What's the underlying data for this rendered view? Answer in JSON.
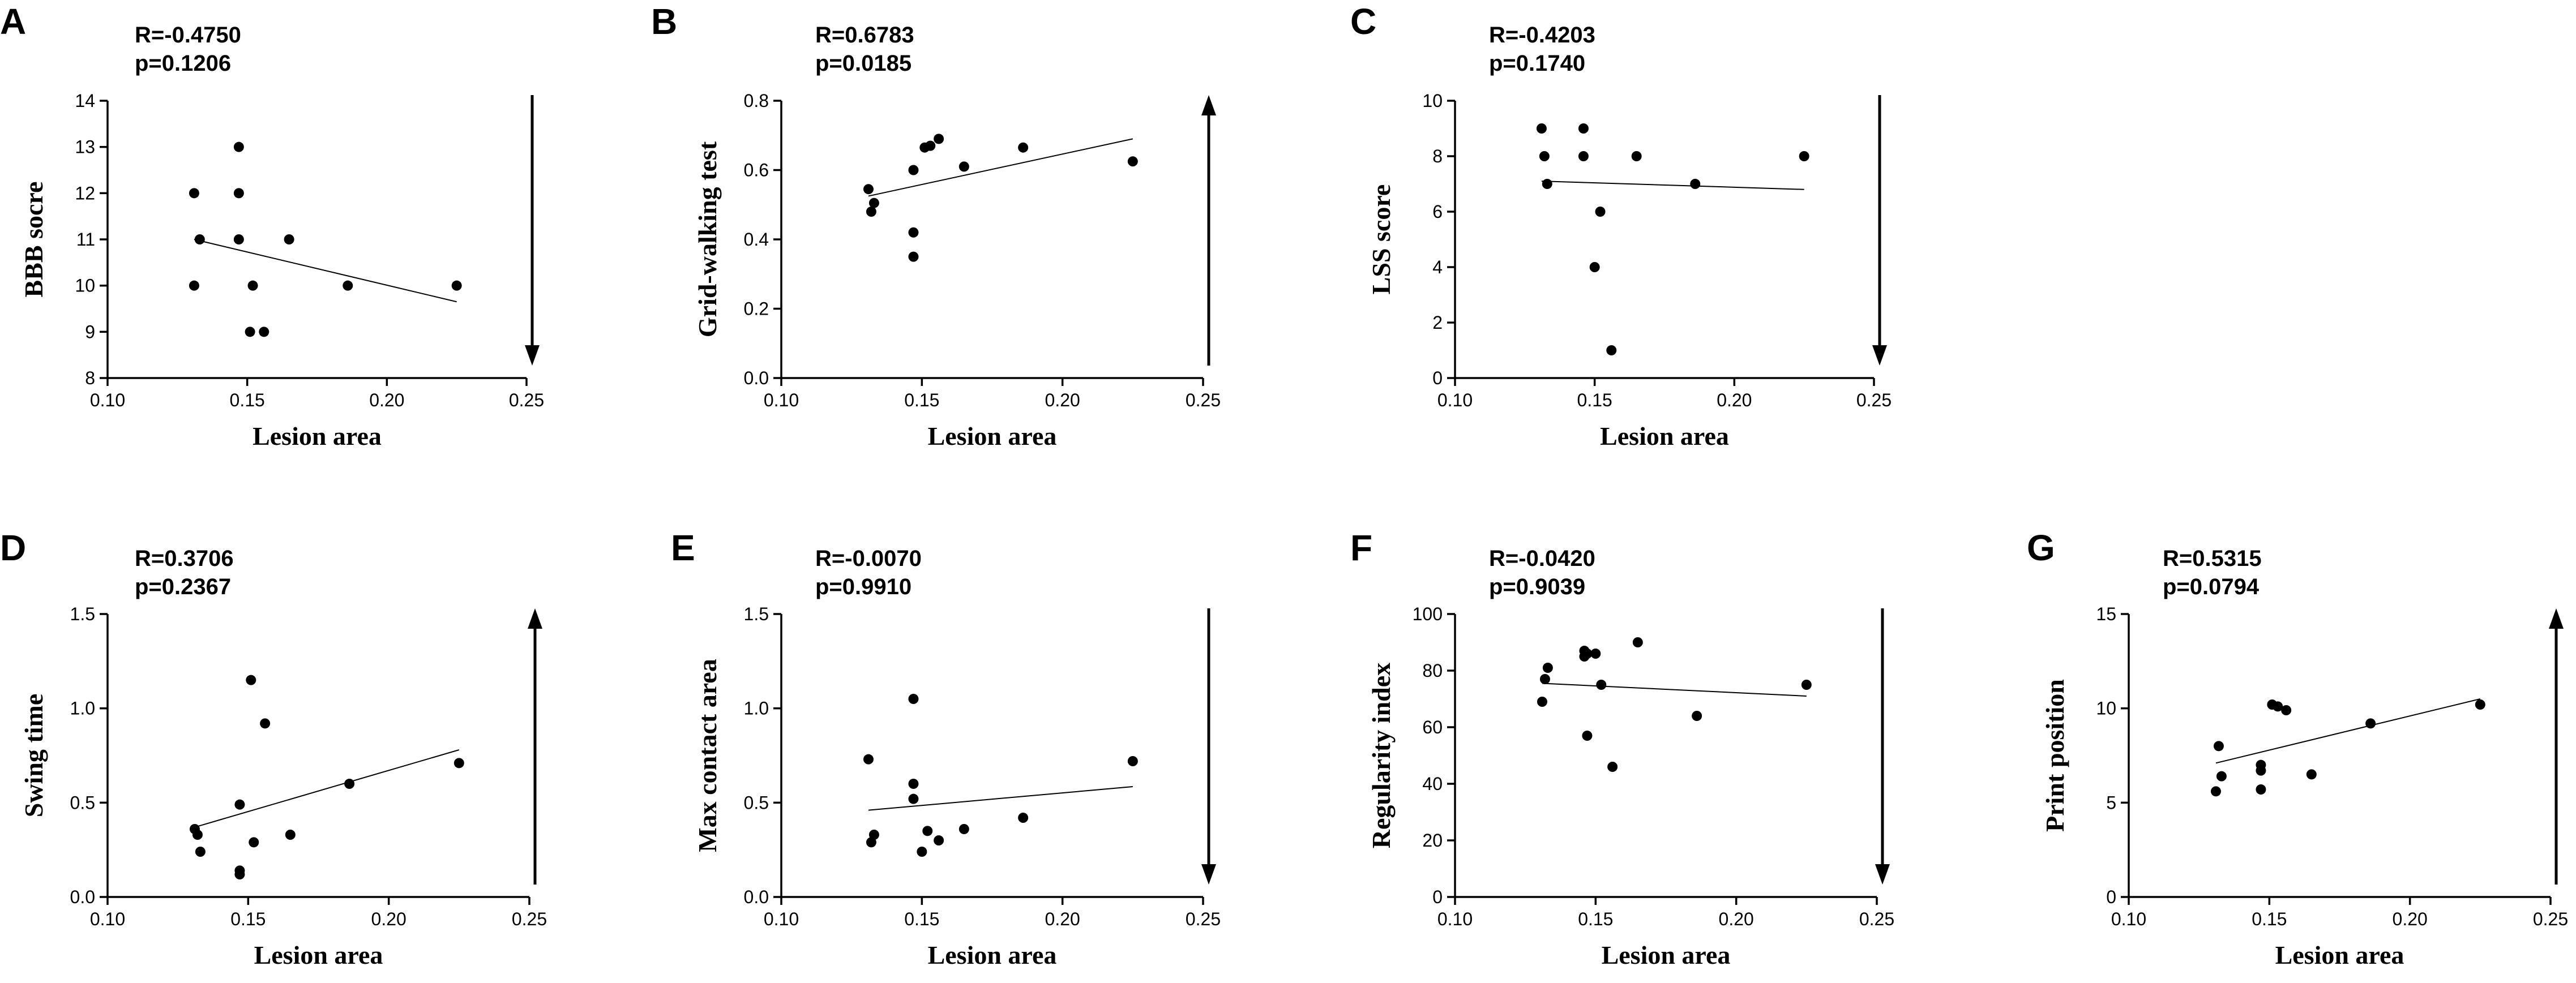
{
  "colors": {
    "ink": "#000000",
    "background": "#ffffff"
  },
  "chart_data": [
    {
      "type": "scatter",
      "panel": "A",
      "r_text": "R=-0.4750",
      "p_text": "p=0.1206",
      "xlabel": "Lesion area",
      "ylabel": "BBB socre",
      "xlim": [
        0.1,
        0.25
      ],
      "ylim": [
        8,
        14
      ],
      "xticks": [
        "0.10",
        "0.15",
        "0.20",
        "0.25"
      ],
      "yticks": [
        "8",
        "9",
        "10",
        "11",
        "12",
        "13",
        "14"
      ],
      "x": [
        0.131,
        0.131,
        0.133,
        0.147,
        0.147,
        0.147,
        0.151,
        0.152,
        0.156,
        0.165,
        0.186,
        0.225
      ],
      "y": [
        12,
        10,
        11,
        13,
        12,
        11,
        9,
        10,
        9,
        11,
        10,
        10
      ],
      "fit": {
        "x": [
          0.131,
          0.225
        ],
        "y": [
          11.0,
          9.65
        ]
      },
      "arrow": "down"
    },
    {
      "type": "scatter",
      "panel": "B",
      "r_text": "R=0.6783",
      "p_text": "p=0.0185",
      "xlabel": "Lesion area",
      "ylabel": "Grid-walking test",
      "xlim": [
        0.1,
        0.25
      ],
      "ylim": [
        0.0,
        0.8
      ],
      "xticks": [
        "0.10",
        "0.15",
        "0.20",
        "0.25"
      ],
      "yticks": [
        "0.0",
        "0.2",
        "0.4",
        "0.6",
        "0.8"
      ],
      "x": [
        0.131,
        0.132,
        0.133,
        0.147,
        0.147,
        0.147,
        0.151,
        0.153,
        0.156,
        0.165,
        0.186,
        0.225
      ],
      "y": [
        0.545,
        0.48,
        0.505,
        0.6,
        0.42,
        0.35,
        0.665,
        0.67,
        0.69,
        0.61,
        0.665,
        0.625
      ],
      "fit": {
        "x": [
          0.131,
          0.225
        ],
        "y": [
          0.525,
          0.69
        ]
      },
      "arrow": "up"
    },
    {
      "type": "scatter",
      "panel": "C",
      "r_text": "R=-0.4203",
      "p_text": "p=0.1740",
      "xlabel": "Lesion area",
      "ylabel": "LSS score",
      "xlim": [
        0.1,
        0.25
      ],
      "ylim": [
        0,
        10
      ],
      "xticks": [
        "0.10",
        "0.15",
        "0.20",
        "0.25"
      ],
      "yticks": [
        "0",
        "2",
        "4",
        "6",
        "8",
        "10"
      ],
      "x": [
        0.131,
        0.132,
        0.133,
        0.146,
        0.146,
        0.15,
        0.152,
        0.156,
        0.165,
        0.186,
        0.225
      ],
      "y": [
        9,
        8,
        7,
        9,
        8,
        4,
        6,
        1,
        8,
        7,
        8
      ],
      "fit": {
        "x": [
          0.131,
          0.225
        ],
        "y": [
          7.1,
          6.8
        ]
      },
      "arrow": "down"
    },
    {
      "type": "scatter",
      "panel": "D",
      "r_text": "R=0.3706",
      "p_text": "p=0.2367",
      "xlabel": "Lesion area",
      "ylabel": "Swing time",
      "xlim": [
        0.1,
        0.25
      ],
      "ylim": [
        0.0,
        1.5
      ],
      "xticks": [
        "0.10",
        "0.15",
        "0.20",
        "0.25"
      ],
      "yticks": [
        "0.0",
        "0.5",
        "1.0",
        "1.5"
      ],
      "x": [
        0.131,
        0.132,
        0.133,
        0.147,
        0.147,
        0.147,
        0.151,
        0.152,
        0.156,
        0.165,
        0.186,
        0.225
      ],
      "y": [
        0.36,
        0.33,
        0.24,
        0.49,
        0.14,
        0.12,
        1.15,
        0.29,
        0.92,
        0.33,
        0.6,
        0.71
      ],
      "fit": {
        "x": [
          0.131,
          0.225
        ],
        "y": [
          0.37,
          0.78
        ]
      },
      "arrow": "up"
    },
    {
      "type": "scatter",
      "panel": "E",
      "r_text": "R=-0.0070",
      "p_text": "p=0.9910",
      "xlabel": "Lesion area",
      "ylabel": "Max contact area",
      "xlim": [
        0.1,
        0.25
      ],
      "ylim": [
        0.0,
        1.5
      ],
      "xticks": [
        "0.10",
        "0.15",
        "0.20",
        "0.25"
      ],
      "yticks": [
        "0.0",
        "0.5",
        "1.0",
        "1.5"
      ],
      "x": [
        0.131,
        0.132,
        0.133,
        0.147,
        0.147,
        0.147,
        0.15,
        0.152,
        0.156,
        0.165,
        0.186,
        0.225
      ],
      "y": [
        0.73,
        0.29,
        0.33,
        1.05,
        0.6,
        0.52,
        0.24,
        0.35,
        0.3,
        0.36,
        0.42,
        0.72
      ],
      "fit": {
        "x": [
          0.131,
          0.225
        ],
        "y": [
          0.46,
          0.585
        ]
      },
      "arrow": "down"
    },
    {
      "type": "scatter",
      "panel": "F",
      "r_text": "R=-0.0420",
      "p_text": "p=0.9039",
      "xlabel": "Lesion area",
      "ylabel": "Regularity index",
      "xlim": [
        0.1,
        0.25
      ],
      "ylim": [
        0,
        100
      ],
      "xticks": [
        "0.10",
        "0.15",
        "0.20",
        "0.25"
      ],
      "yticks": [
        "0",
        "20",
        "40",
        "60",
        "80",
        "100"
      ],
      "x": [
        0.131,
        0.132,
        0.133,
        0.146,
        0.146,
        0.147,
        0.147,
        0.15,
        0.152,
        0.156,
        0.165,
        0.186,
        0.225
      ],
      "y": [
        69,
        77,
        81,
        87,
        85,
        86,
        57,
        86,
        75,
        46,
        90,
        64,
        75
      ],
      "fit": {
        "x": [
          0.131,
          0.225
        ],
        "y": [
          75.5,
          71
        ]
      },
      "arrow": "down"
    },
    {
      "type": "scatter",
      "panel": "G",
      "r_text": "R=0.5315",
      "p_text": "p=0.0794",
      "xlabel": "Lesion area",
      "ylabel": "Print position",
      "xlim": [
        0.1,
        0.25
      ],
      "ylim": [
        0,
        15
      ],
      "xticks": [
        "0.10",
        "0.15",
        "0.20",
        "0.25"
      ],
      "yticks": [
        "0",
        "5",
        "10",
        "15"
      ],
      "x": [
        0.131,
        0.132,
        0.133,
        0.147,
        0.147,
        0.147,
        0.151,
        0.153,
        0.156,
        0.165,
        0.186,
        0.225
      ],
      "y": [
        5.6,
        8.0,
        6.4,
        7.0,
        6.7,
        5.7,
        10.2,
        10.1,
        9.9,
        6.5,
        9.2,
        10.2
      ],
      "fit": {
        "x": [
          0.131,
          0.225
        ],
        "y": [
          7.1,
          10.5
        ]
      },
      "arrow": "up"
    }
  ]
}
